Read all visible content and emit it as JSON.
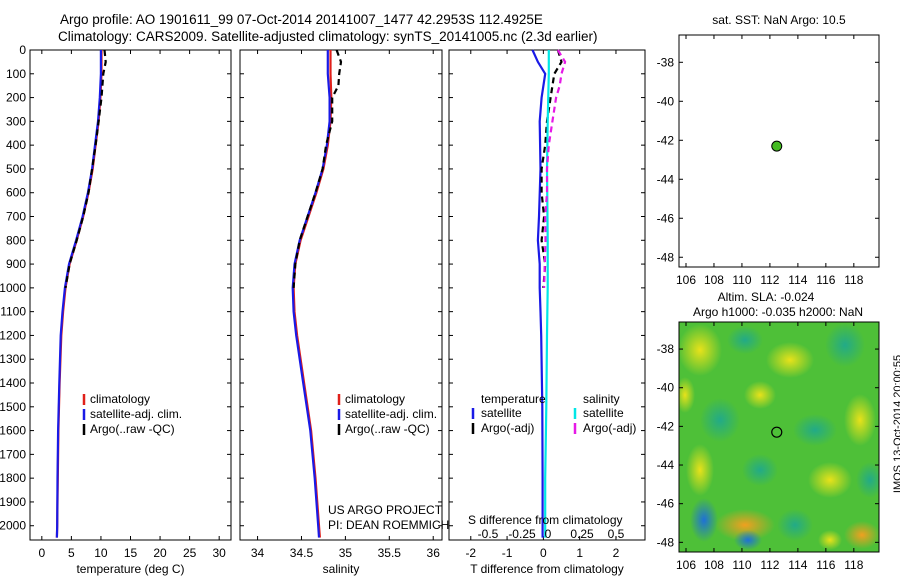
{
  "header": {
    "line1": "Argo profile: AO 1901611_99 07-Oct-2014 20141007_1477 42.2953S 112.4925E",
    "line2": "Climatology: CARS2009. Satellite-adjusted climatology: synTS_20141005.nc (2.3d earlier)"
  },
  "depth_ticks": [
    "0",
    "100",
    "200",
    "300",
    "400",
    "500",
    "600",
    "700",
    "800",
    "900",
    "1000",
    "1100",
    "1200",
    "1300",
    "1400",
    "1500",
    "1600",
    "1700",
    "1800",
    "1900",
    "2000"
  ],
  "credit": {
    "project": "US ARGO PROJECT",
    "pi": "PI: DEAN ROEMMICH",
    "timestamp": "IMOS 13-Oct-2014 20:00:55"
  },
  "colors": {
    "climatology": "#e0201a",
    "satellite": "#1a1ae6",
    "argo": "#000000",
    "sal_satellite": "#00e6e6",
    "sal_argo": "#e619e6",
    "point": "#44bb22"
  },
  "chart_data": [
    {
      "type": "line",
      "xlabel": "temperature (deg C)",
      "xticks": [
        0,
        5,
        10,
        15,
        20,
        25,
        30
      ],
      "xlim": [
        -2,
        32
      ],
      "ylim": [
        2060,
        0
      ],
      "legend": [
        "climatology",
        "satellite-adj. clim.",
        "Argo(..raw -QC)"
      ],
      "series": [
        {
          "name": "climatology",
          "depth": [
            0,
            50,
            100,
            200,
            300,
            400,
            500,
            600,
            700,
            800,
            900,
            1000,
            1100,
            1200,
            1400,
            1600,
            1800,
            2000,
            2050
          ],
          "values": [
            10.1,
            10.1,
            10.1,
            9.9,
            9.6,
            9.1,
            8.6,
            7.9,
            7.0,
            5.9,
            4.7,
            4.0,
            3.6,
            3.3,
            3.0,
            2.8,
            2.7,
            2.6,
            2.55
          ]
        },
        {
          "name": "satellite-adj. clim.",
          "depth": [
            0,
            50,
            100,
            200,
            300,
            400,
            500,
            600,
            700,
            800,
            900,
            1000,
            1100,
            1200,
            1400,
            1600,
            1800,
            2000,
            2050
          ],
          "values": [
            10.0,
            10.0,
            10.0,
            9.8,
            9.5,
            9.0,
            8.5,
            7.8,
            6.9,
            5.8,
            4.6,
            3.9,
            3.5,
            3.2,
            2.95,
            2.75,
            2.65,
            2.6,
            2.55
          ]
        },
        {
          "name": "Argo(..raw -QC)",
          "depth": [
            0,
            50,
            100,
            200,
            300,
            400,
            500,
            600,
            700,
            800,
            900,
            1000
          ],
          "values": [
            10.6,
            10.8,
            10.4,
            10.1,
            9.6,
            9.1,
            8.5,
            7.9,
            7.0,
            5.9,
            4.7,
            4.0
          ]
        }
      ]
    },
    {
      "type": "line",
      "xlabel": "salinity",
      "xticks": [
        34,
        34.5,
        35,
        35.5,
        36
      ],
      "xlim": [
        33.8,
        36.1
      ],
      "ylim": [
        2060,
        0
      ],
      "legend": [
        "climatology",
        "satellite-adj. clim.",
        "Argo(..raw -QC)"
      ],
      "series": [
        {
          "name": "climatology",
          "depth": [
            0,
            50,
            100,
            200,
            300,
            400,
            500,
            600,
            700,
            800,
            900,
            1000,
            1100,
            1200,
            1400,
            1600,
            1800,
            2000,
            2050
          ],
          "values": [
            34.83,
            34.83,
            34.83,
            34.84,
            34.83,
            34.8,
            34.75,
            34.67,
            34.58,
            34.49,
            34.43,
            34.41,
            34.42,
            34.45,
            34.53,
            34.61,
            34.66,
            34.7,
            34.71
          ]
        },
        {
          "name": "satellite-adj. clim.",
          "depth": [
            0,
            50,
            100,
            200,
            300,
            400,
            500,
            600,
            700,
            800,
            900,
            1000,
            1100,
            1200,
            1400,
            1600,
            1800,
            2000,
            2050
          ],
          "values": [
            34.8,
            34.8,
            34.8,
            34.82,
            34.82,
            34.79,
            34.74,
            34.66,
            34.57,
            34.48,
            34.42,
            34.4,
            34.41,
            34.44,
            34.52,
            34.6,
            34.65,
            34.69,
            34.7
          ]
        },
        {
          "name": "Argo(..raw -QC)",
          "depth": [
            0,
            50,
            100,
            150,
            200,
            300,
            400,
            500,
            600,
            700,
            800,
            900,
            1000
          ],
          "values": [
            34.9,
            34.95,
            34.93,
            34.92,
            34.85,
            34.85,
            34.78,
            34.74,
            34.66,
            34.57,
            34.48,
            34.43,
            34.41
          ]
        }
      ]
    },
    {
      "type": "line",
      "xlabel": "T difference from climatology",
      "xticks": [
        -2,
        -1,
        0,
        1,
        2
      ],
      "xlim": [
        -2.6,
        2.8
      ],
      "top_axis_label": "S difference from climatology",
      "top_axis_ticks": [
        "-0.5",
        "-0.25",
        "0",
        "0.25",
        "0.5"
      ],
      "ylim": [
        2060,
        0
      ],
      "legend": {
        "temperature": {
          "header": "temperature",
          "satellite": "satellite",
          "argo": "Argo(-adj)"
        },
        "salinity": {
          "header": "salinity",
          "satellite": "satellite",
          "argo": "Argo(-adj)"
        }
      },
      "series": [
        {
          "name": "temperature satellite",
          "depth": [
            0,
            50,
            100,
            200,
            300,
            500,
            700,
            800,
            900,
            1000,
            1100,
            1200,
            1500,
            1800,
            2050
          ],
          "values": [
            -0.3,
            -0.15,
            0.05,
            -0.05,
            -0.1,
            -0.08,
            -0.12,
            -0.15,
            -0.1,
            -0.1,
            -0.08,
            -0.06,
            -0.03,
            -0.02,
            -0.02
          ]
        },
        {
          "name": "temperature Argo(-adj)",
          "depth": [
            0,
            50,
            100,
            200,
            300,
            400,
            500,
            600,
            700,
            800,
            900,
            1000
          ],
          "values": [
            0.4,
            0.5,
            0.3,
            0.2,
            0.1,
            0.05,
            -0.05,
            -0.05,
            0.02,
            -0.05,
            0.05,
            0.0
          ]
        },
        {
          "name": "salinity satellite",
          "depth": [
            0,
            100,
            300,
            500,
            800,
            1000,
            1200,
            1500,
            1800,
            2050
          ],
          "values": [
            0.15,
            0.15,
            0.12,
            0.1,
            0.12,
            0.12,
            0.1,
            0.08,
            0.05,
            0.05
          ]
        },
        {
          "name": "salinity Argo(-adj)",
          "depth": [
            0,
            50,
            100,
            150,
            200,
            300,
            400,
            500,
            600,
            700,
            800,
            900,
            1000
          ],
          "values": [
            0.4,
            0.6,
            0.5,
            0.45,
            0.35,
            0.25,
            0.15,
            0.1,
            0.1,
            0.05,
            0.06,
            0.04,
            0.02
          ]
        }
      ]
    },
    {
      "type": "scatter",
      "title": "sat. SST: NaN  Argo: 10.5",
      "xticks": [
        106,
        108,
        110,
        112,
        114,
        116,
        118
      ],
      "yticks": [
        -38,
        -40,
        -42,
        -44,
        -46,
        -48
      ],
      "xlim": [
        105.5,
        119.8
      ],
      "ylim": [
        -48.5,
        -36.6
      ],
      "points": [
        {
          "lon": 112.49,
          "lat": -42.3
        }
      ]
    },
    {
      "type": "heatmap",
      "title_line1": "Altim. SLA: -0.024",
      "title_line2": "Argo h1000: -0.035  h2000: NaN",
      "xticks": [
        106,
        108,
        110,
        112,
        114,
        116,
        118
      ],
      "yticks": [
        -38,
        -40,
        -42,
        -44,
        -46,
        -48
      ],
      "xlim": [
        105.5,
        119.8
      ],
      "ylim": [
        -48.5,
        -36.6
      ],
      "points": [
        {
          "lon": 112.49,
          "lat": -42.3
        }
      ]
    }
  ]
}
